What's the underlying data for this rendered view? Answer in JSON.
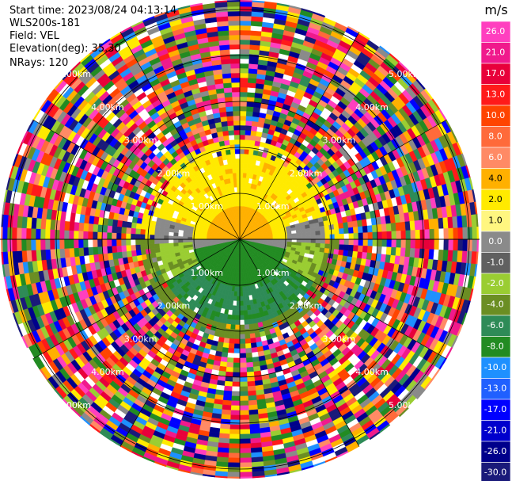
{
  "header": {
    "start_time": "Start time: 2023/08/24 04:13:14",
    "instrument": "WLS200s-181",
    "field": "Field: VEL",
    "elevation": "Elevation(deg): 35.30",
    "nrays": "NRays: 120"
  },
  "colorbar": {
    "unit": "m/s",
    "ticks": [
      "26.0",
      "21.0",
      "17.0",
      "13.0",
      "10.0",
      "8.0",
      "6.0",
      "4.0",
      "2.0",
      "1.0",
      "0.0",
      "-1.0",
      "-2.0",
      "-4.0",
      "-6.0",
      "-8.0",
      "-10.0",
      "-13.0",
      "-17.0",
      "-21.0",
      "-26.0",
      "-30.0"
    ],
    "colors": [
      "#ff3fbf",
      "#f01a8c",
      "#e8003a",
      "#ff1a1a",
      "#ff4400",
      "#ff6a3a",
      "#ff8a65",
      "#ffb000",
      "#ffea00",
      "#fff680",
      "#8a8a8a",
      "#606060",
      "#9acd32",
      "#6b8e23",
      "#2e8b57",
      "#228b22",
      "#1e90ff",
      "#2060ff",
      "#0000ff",
      "#0000cd",
      "#00008b",
      "#1a1a7a"
    ]
  },
  "chart_data": {
    "type": "ppi",
    "field": "VEL",
    "units": "m/s",
    "nrays": 120,
    "ring_labels": [
      "1.00km",
      "2.00km",
      "3.00km",
      "4.00km",
      "5.00km"
    ],
    "range_rings_km": [
      1,
      2,
      3,
      4,
      5
    ],
    "spokes": 12,
    "vmin": -30.0,
    "vmax": 26.0
  }
}
